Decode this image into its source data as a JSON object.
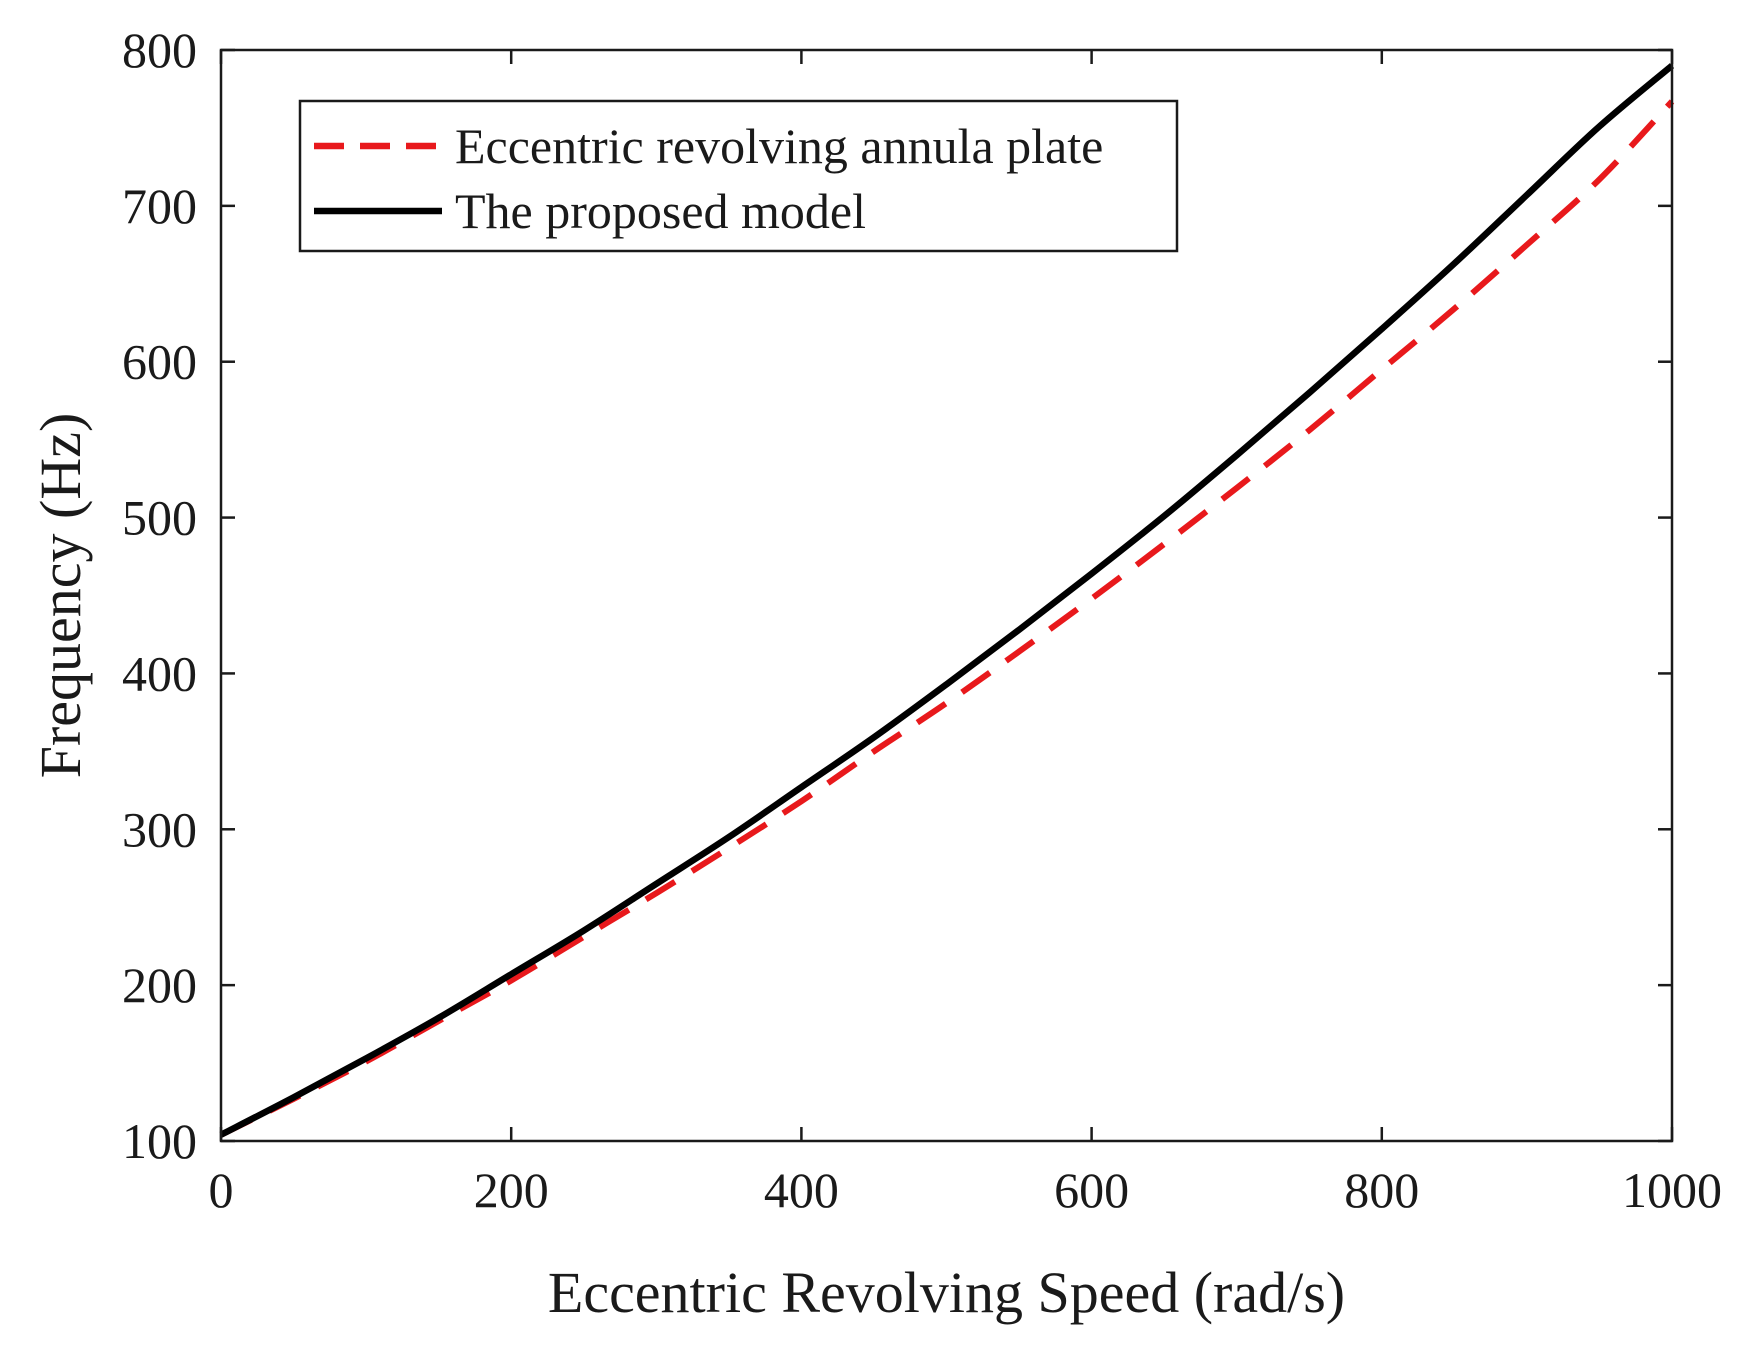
{
  "chart_data": {
    "type": "line",
    "title": "",
    "xlabel": "Eccentric Revolving Speed (rad/s)",
    "ylabel": "Frequency (Hz)",
    "xlim": [
      0,
      1000
    ],
    "ylim": [
      100,
      800
    ],
    "xticks": [
      0,
      200,
      400,
      600,
      800,
      1000
    ],
    "yticks": [
      100,
      200,
      300,
      400,
      500,
      600,
      700,
      800
    ],
    "x": [
      0,
      50,
      100,
      150,
      200,
      250,
      300,
      350,
      400,
      450,
      500,
      550,
      600,
      650,
      700,
      750,
      800,
      850,
      900,
      950,
      1000
    ],
    "series": [
      {
        "name": "Eccentric revolving annula plate",
        "color": "#e8191c",
        "style": "dashed",
        "values": [
          104,
          127,
          151,
          177,
          203,
          231,
          259,
          288,
          318,
          350,
          381,
          414,
          448,
          483,
          519,
          556,
          595,
          634,
          675,
          717,
          767
        ]
      },
      {
        "name": "The proposed model",
        "color": "#000000",
        "style": "solid",
        "values": [
          104,
          128,
          153,
          179,
          207,
          235,
          265,
          295,
          327,
          359,
          393,
          428,
          464,
          501,
          540,
          580,
          621,
          663,
          707,
          751,
          790
        ]
      }
    ],
    "legend_position": "top-left",
    "grid": false,
    "box": true
  }
}
